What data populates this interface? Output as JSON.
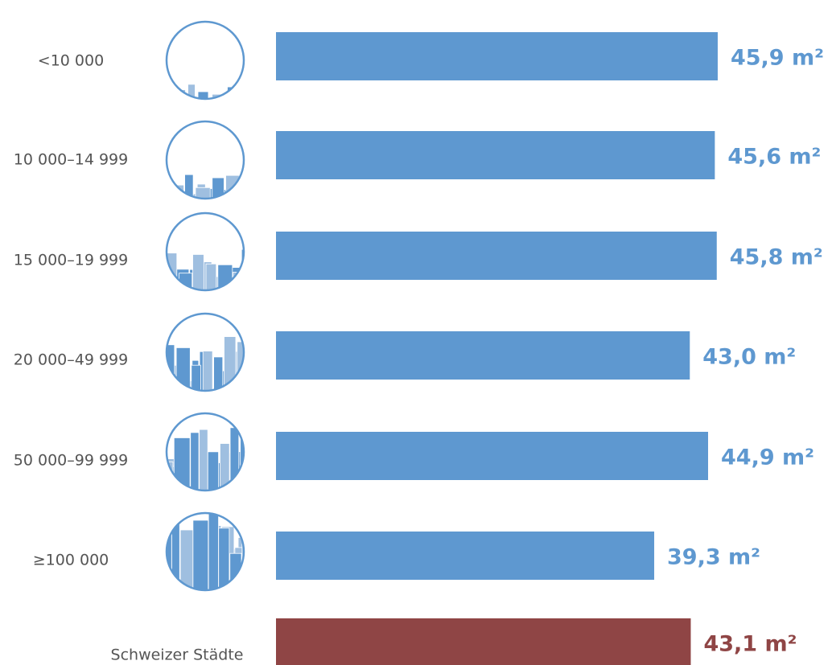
{
  "chart_data": {
    "type": "bar",
    "orientation": "horizontal",
    "categories": [
      "<10 000",
      "10 000–14 999",
      "15 000–19 999",
      "20 000–49 999",
      "50 000–99 999",
      "≥100 000",
      "Schweizer Städte"
    ],
    "values": [
      45.9,
      45.6,
      45.8,
      43.0,
      44.9,
      39.3,
      43.1
    ],
    "value_labels": [
      "45,9 m²",
      "45,6 m²",
      "45,8 m²",
      "43,0 m²",
      "44,9 m²",
      "39,3 m²",
      "43,1 m²"
    ],
    "colors": [
      "#5e98d0",
      "#5e98d0",
      "#5e98d0",
      "#5e98d0",
      "#5e98d0",
      "#5e98d0",
      "#8f4545"
    ]
  }
}
